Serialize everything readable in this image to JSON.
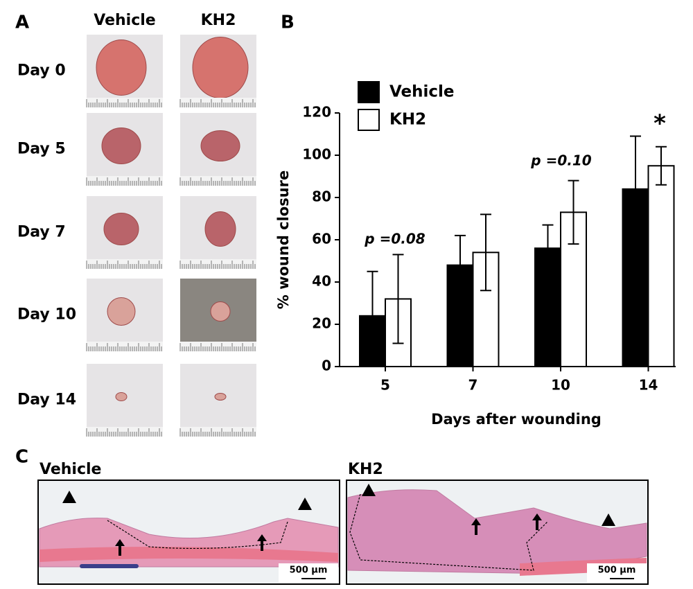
{
  "panel_a": {
    "label": "A",
    "columns": [
      "Vehicle",
      "KH2"
    ],
    "rows": [
      "Day 0",
      "Day 5",
      "Day 7",
      "Day 10",
      "Day 14"
    ]
  },
  "chart_data": {
    "type": "bar",
    "panel_label": "B",
    "x_label": "Days after wounding",
    "y_label": "% wound closure",
    "categories": [
      "5",
      "7",
      "10",
      "14"
    ],
    "series": [
      {
        "name": "Vehicle",
        "color": "#000000",
        "values": [
          24,
          48,
          56,
          84
        ],
        "errors": [
          21,
          14,
          11,
          25
        ]
      },
      {
        "name": "KH2",
        "color": "#ffffff",
        "values": [
          32,
          54,
          73,
          95
        ],
        "errors": [
          21,
          18,
          15,
          9
        ]
      }
    ],
    "ylim": [
      0,
      120
    ],
    "yticks": [
      0,
      20,
      40,
      60,
      80,
      100,
      120
    ],
    "legend": "upper left",
    "grid": false,
    "annotations": [
      "p =0.08",
      "p =0.10",
      "*"
    ]
  },
  "panel_c": {
    "label": "C",
    "panels": [
      {
        "title": "Vehicle",
        "scale_bar": "500 μm"
      },
      {
        "title": "KH2",
        "scale_bar": "500 μm"
      }
    ]
  }
}
